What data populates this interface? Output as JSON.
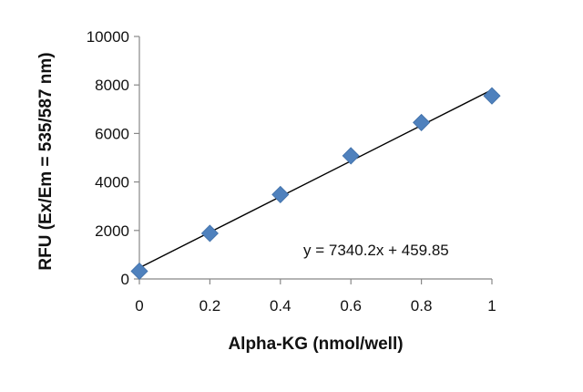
{
  "chart_data": {
    "type": "scatter",
    "xlabel": "Alpha-KG (nmol/well)",
    "ylabel": "RFU (Ex/Em = 535/587 nm)",
    "xlim": [
      0,
      1
    ],
    "ylim": [
      0,
      10000
    ],
    "x_ticks": [
      "0",
      "0.2",
      "0.4",
      "0.6",
      "0.8",
      "1"
    ],
    "y_ticks": [
      "0",
      "2000",
      "4000",
      "6000",
      "8000",
      "10000"
    ],
    "grid": false,
    "legend": "none",
    "series": [
      {
        "marker": "diamond",
        "color": "#4f81bd",
        "points": [
          {
            "x": 0,
            "y": 320
          },
          {
            "x": 0.2,
            "y": 1880
          },
          {
            "x": 0.4,
            "y": 3480
          },
          {
            "x": 0.6,
            "y": 5080
          },
          {
            "x": 0.8,
            "y": 6450
          },
          {
            "x": 1,
            "y": 7550
          }
        ]
      }
    ],
    "trendline": {
      "slope": 7340.2,
      "intercept": 459.85,
      "color": "#000000",
      "label": "y = 7340.2x + 459.85"
    }
  }
}
